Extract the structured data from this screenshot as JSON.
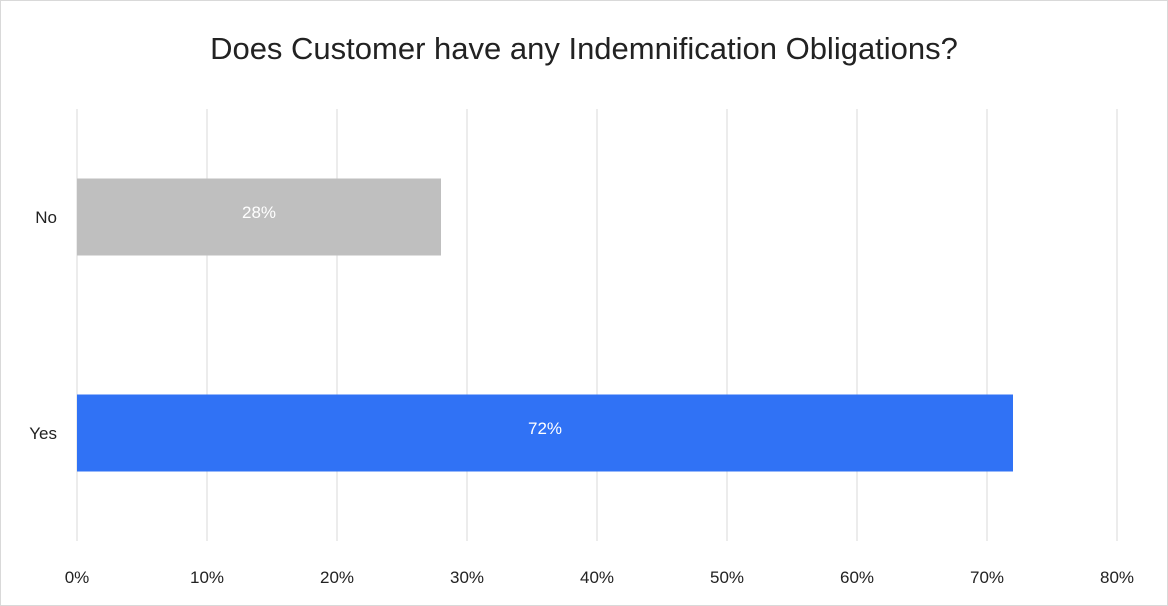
{
  "chart_data": {
    "type": "bar",
    "orientation": "horizontal",
    "title": "Does Customer have any Indemnification Obligations?",
    "categories": [
      "No",
      "Yes"
    ],
    "values": [
      28,
      72
    ],
    "data_labels": [
      "28%",
      "72%"
    ],
    "colors": [
      "#bfbfbf",
      "#3072f5"
    ],
    "xlim": [
      0,
      80
    ],
    "x_ticks": [
      0,
      10,
      20,
      30,
      40,
      50,
      60,
      70,
      80
    ],
    "x_tick_labels": [
      "0%",
      "10%",
      "20%",
      "30%",
      "40%",
      "50%",
      "60%",
      "70%",
      "80%"
    ],
    "xlabel": "",
    "ylabel": "",
    "grid": "vertical",
    "legend": "none"
  }
}
